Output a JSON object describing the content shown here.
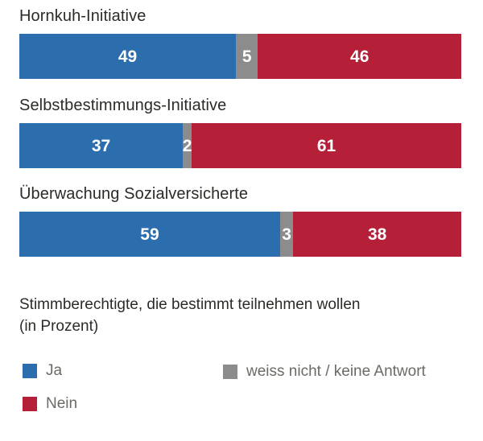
{
  "chart_data": {
    "type": "bar",
    "stacked": true,
    "orientation": "horizontal",
    "unit": "percent",
    "xlim": [
      0,
      100
    ],
    "grid": false,
    "legend_position": "bottom",
    "categories": [
      "Hornkuh-Initiative",
      "Selbstbestimmungs-Initiative",
      "Überwachung Sozialversicherte"
    ],
    "series": [
      {
        "name": "Ja",
        "color": "#2b6dad",
        "values": [
          49,
          37,
          59
        ]
      },
      {
        "name": "weiss nicht / keine Antwort",
        "color": "#8c8c8c",
        "values": [
          5,
          2,
          3
        ]
      },
      {
        "name": "Nein",
        "color": "#b51f37",
        "values": [
          46,
          61,
          38
        ]
      }
    ],
    "caption": "Stimmberechtigte, die bestimmt teilnehmen wollen (in Prozent)"
  }
}
